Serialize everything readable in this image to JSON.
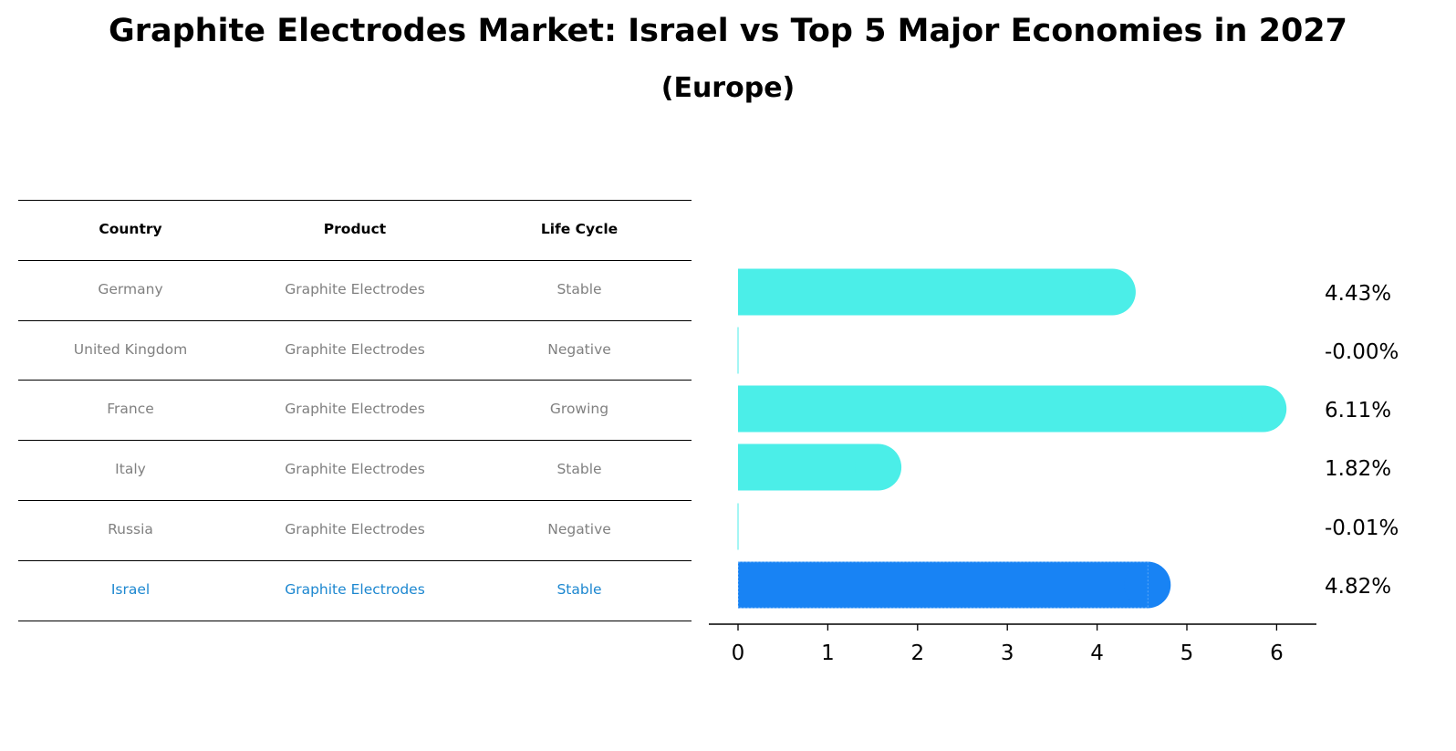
{
  "title": "Graphite Electrodes Market: Israel vs Top 5 Major Economies in 2027",
  "subtitle": "(Europe)",
  "table": {
    "headers": [
      "Country",
      "Product",
      "Life Cycle"
    ],
    "rows": [
      [
        "Germany",
        "Graphite Electrodes",
        "Stable"
      ],
      [
        "United Kingdom",
        "Graphite Electrodes",
        "Negative"
      ],
      [
        "France",
        "Graphite Electrodes",
        "Growing"
      ],
      [
        "Italy",
        "Graphite Electrodes",
        "Stable"
      ],
      [
        "Russia",
        "Graphite Electrodes",
        "Negative"
      ],
      [
        "Israel",
        "Graphite Electrodes",
        "Stable"
      ]
    ],
    "highlight_row": 5,
    "colors": {
      "text": "#808080",
      "highlight": "#1c87d0",
      "header": "#000000"
    }
  },
  "chart_data": {
    "type": "bar",
    "orientation": "horizontal",
    "categories": [
      "Germany",
      "United Kingdom",
      "France",
      "Italy",
      "Russia",
      "Israel"
    ],
    "values": [
      4.43,
      -0.0,
      6.11,
      1.82,
      -0.01,
      4.82
    ],
    "labels": [
      "4.43%",
      "-0.00%",
      "6.11%",
      "1.82%",
      "-0.01%",
      "4.82%"
    ],
    "xlim": [
      -0.32,
      6.42
    ],
    "xticks": [
      0,
      1,
      2,
      3,
      4,
      5,
      6
    ],
    "grid": false,
    "colors": {
      "default": "#4beee8",
      "highlight": "#1883f4"
    },
    "highlight_index": 5
  }
}
